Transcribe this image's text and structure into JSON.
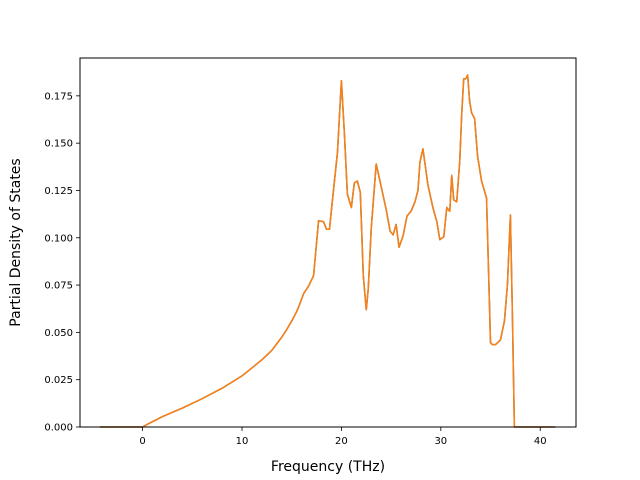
{
  "chart_data": {
    "type": "line",
    "xlabel": "Frequency (THz)",
    "ylabel": "Partial Density of States",
    "xlim": [
      -6.3,
      43.6
    ],
    "ylim": [
      0.0,
      0.195
    ],
    "x_ticks": [
      0,
      10,
      20,
      30,
      40
    ],
    "x_tick_labels": [
      "0",
      "10",
      "20",
      "30",
      "40"
    ],
    "y_ticks": [
      0.0,
      0.025,
      0.05,
      0.075,
      0.1,
      0.125,
      0.15,
      0.175
    ],
    "y_tick_labels": [
      "0.000",
      "0.025",
      "0.050",
      "0.075",
      "0.100",
      "0.125",
      "0.150",
      "0.175"
    ],
    "grid": false,
    "series": [
      {
        "color": "#1f77b4",
        "x": [
          -4.3,
          0.0,
          0.5,
          2.0,
          4.0,
          6.0,
          8.0,
          10.0,
          12.0,
          13.0,
          14.0,
          14.5,
          15.0,
          15.5,
          15.7,
          16.2,
          16.7,
          17.2,
          17.7,
          18.2,
          18.5,
          18.8,
          19.0,
          19.3,
          19.6,
          20.0,
          20.3,
          20.6,
          21.0,
          21.3,
          21.6,
          21.9,
          22.2,
          22.5,
          22.7,
          23.0,
          23.5,
          24.0,
          24.5,
          24.9,
          25.2,
          25.5,
          25.8,
          26.2,
          26.6,
          27.0,
          27.4,
          27.7,
          27.9,
          28.2,
          28.7,
          29.2,
          29.6,
          29.9,
          30.3,
          30.6,
          30.9,
          31.1,
          31.3,
          31.6,
          31.9,
          32.1,
          32.3,
          32.5,
          32.7,
          32.9,
          33.1,
          33.4,
          33.7,
          34.1,
          34.6,
          35.0,
          35.2,
          35.5,
          36.0,
          36.4,
          36.7,
          37.0,
          37.2,
          37.4,
          37.7,
          37.9,
          38.5,
          40.0,
          41.5
        ],
        "y": [
          0.0,
          0.0,
          0.0015,
          0.0055,
          0.01,
          0.015,
          0.0205,
          0.027,
          0.0355,
          0.0405,
          0.0475,
          0.0515,
          0.056,
          0.061,
          0.0635,
          0.0705,
          0.0745,
          0.08,
          0.109,
          0.1085,
          0.1045,
          0.1045,
          0.115,
          0.13,
          0.145,
          0.183,
          0.155,
          0.123,
          0.116,
          0.129,
          0.13,
          0.124,
          0.08,
          0.062,
          0.073,
          0.105,
          0.139,
          0.127,
          0.115,
          0.1035,
          0.1015,
          0.107,
          0.095,
          0.101,
          0.1115,
          0.114,
          0.119,
          0.125,
          0.14,
          0.147,
          0.128,
          0.116,
          0.1085,
          0.099,
          0.1005,
          0.116,
          0.114,
          0.133,
          0.12,
          0.119,
          0.14,
          0.165,
          0.184,
          0.184,
          0.186,
          0.172,
          0.166,
          0.163,
          0.143,
          0.13,
          0.121,
          0.0445,
          0.0435,
          0.0435,
          0.046,
          0.056,
          0.075,
          0.112,
          0.06,
          0.0,
          0.0,
          0.0,
          0.0,
          0.0,
          0.0
        ]
      },
      {
        "color": "#ff7f0e",
        "x": [
          -4.3,
          0.0,
          0.5,
          2.0,
          4.0,
          6.0,
          8.0,
          10.0,
          12.0,
          13.0,
          14.0,
          14.5,
          15.0,
          15.5,
          15.7,
          16.2,
          16.7,
          17.2,
          17.7,
          18.2,
          18.5,
          18.8,
          19.0,
          19.3,
          19.6,
          20.0,
          20.3,
          20.6,
          21.0,
          21.3,
          21.6,
          21.9,
          22.2,
          22.5,
          22.7,
          23.0,
          23.5,
          24.0,
          24.5,
          24.9,
          25.2,
          25.5,
          25.8,
          26.2,
          26.6,
          27.0,
          27.4,
          27.7,
          27.9,
          28.2,
          28.7,
          29.2,
          29.6,
          29.9,
          30.3,
          30.6,
          30.9,
          31.1,
          31.3,
          31.6,
          31.9,
          32.1,
          32.3,
          32.5,
          32.7,
          32.9,
          33.1,
          33.4,
          33.7,
          34.1,
          34.6,
          35.0,
          35.2,
          35.5,
          36.0,
          36.4,
          36.7,
          37.0,
          37.2,
          37.4,
          37.7,
          37.9,
          38.5,
          40.0,
          41.5
        ],
        "y": [
          0.0,
          0.0,
          0.0015,
          0.0055,
          0.01,
          0.015,
          0.0205,
          0.027,
          0.0355,
          0.0405,
          0.0475,
          0.0515,
          0.056,
          0.061,
          0.0635,
          0.0705,
          0.0745,
          0.08,
          0.109,
          0.1085,
          0.1045,
          0.1045,
          0.115,
          0.13,
          0.145,
          0.183,
          0.155,
          0.123,
          0.116,
          0.129,
          0.13,
          0.124,
          0.08,
          0.062,
          0.073,
          0.105,
          0.139,
          0.127,
          0.115,
          0.1035,
          0.1015,
          0.107,
          0.095,
          0.101,
          0.1115,
          0.114,
          0.119,
          0.125,
          0.14,
          0.147,
          0.128,
          0.116,
          0.1085,
          0.099,
          0.1005,
          0.116,
          0.114,
          0.133,
          0.12,
          0.119,
          0.14,
          0.165,
          0.184,
          0.184,
          0.186,
          0.172,
          0.166,
          0.163,
          0.143,
          0.13,
          0.121,
          0.0445,
          0.0435,
          0.0435,
          0.046,
          0.056,
          0.075,
          0.112,
          0.06,
          0.0,
          0.0,
          0.0,
          0.0,
          0.0,
          0.0
        ]
      }
    ]
  }
}
